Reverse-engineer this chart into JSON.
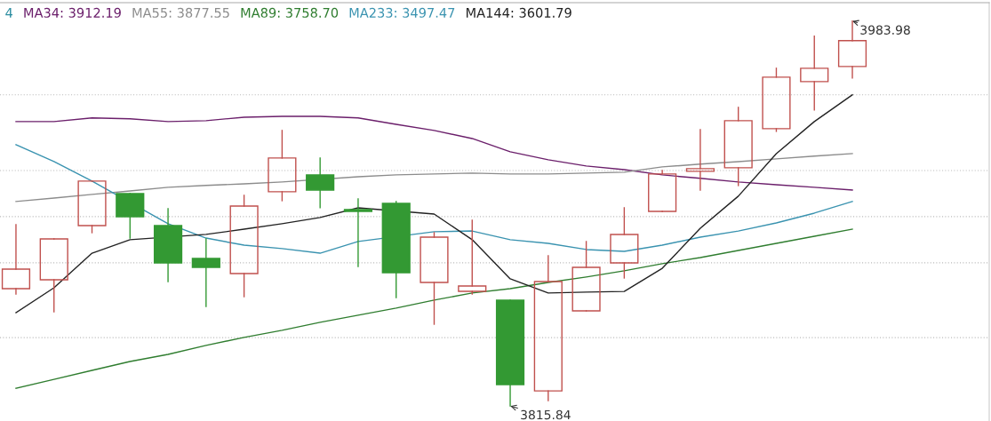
{
  "chart_data": {
    "type": "candlestick",
    "categories": [
      null,
      null,
      null,
      null,
      null,
      null,
      null,
      null,
      null,
      null,
      null,
      null,
      null,
      null,
      null,
      null,
      null,
      null,
      null,
      null,
      null,
      null,
      null
    ],
    "ohlc": [
      [
        3867.1,
        3895.06,
        3864.77,
        3875.64
      ],
      [
        3870.98,
        3888.85,
        3857.0,
        3888.85
      ],
      [
        3894.67,
        3914.09,
        3891.56,
        3914.09
      ],
      [
        3908.65,
        3908.65,
        3889.23,
        3898.55
      ],
      [
        3894.67,
        3902.05,
        3870.2,
        3878.36
      ],
      [
        3880.3,
        3888.85,
        3859.34,
        3876.42
      ],
      [
        3873.7,
        3907.87,
        3863.6,
        3903.21
      ],
      [
        3909.43,
        3936.22,
        3905.54,
        3924.18
      ],
      [
        3916.8,
        3924.18,
        3902.44,
        3910.2
      ],
      [
        3901.66,
        3906.32,
        3876.81,
        3900.88
      ],
      [
        3904.38,
        3905.15,
        3863.22,
        3874.09
      ],
      [
        3869.82,
        3891.56,
        3851.57,
        3889.62
      ],
      [
        3865.94,
        3897.0,
        3864.77,
        3868.27
      ],
      [
        3862.05,
        3862.05,
        3815.84,
        3825.16
      ],
      [
        3822.44,
        3881.47,
        3818.17,
        3870.2
      ],
      [
        3857.39,
        3887.68,
        3857.39,
        3876.42
      ],
      [
        3878.36,
        3902.44,
        3871.76,
        3890.79
      ],
      [
        3900.88,
        3918.75,
        3900.88,
        3917.19
      ],
      [
        3918.36,
        3936.61,
        3910.2,
        3919.52
      ],
      [
        3919.91,
        3946.31,
        3912.15,
        3940.49
      ],
      [
        3936.99,
        3963.4,
        3935.83,
        3959.52
      ],
      [
        3957.58,
        3977.38,
        3945.15,
        3963.4
      ],
      [
        3964.18,
        3983.98,
        3959.13,
        3975.44
      ]
    ],
    "colors": [
      "#c0504d",
      "#c0504d",
      "#c0504d",
      "#339933",
      "#339933",
      "#339933",
      "#c0504d",
      "#c0504d",
      "#339933",
      "#339933",
      "#339933",
      "#c0504d",
      "#c0504d",
      "#339933",
      "#c0504d",
      "#c0504d",
      "#c0504d",
      "#c0504d",
      "#c0504d",
      "#c0504d",
      "#c0504d",
      "#c0504d",
      "#c0504d"
    ],
    "series": [
      {
        "type": "line",
        "name": "MA34: 3912.19",
        "color": "#6b1f6b",
        "values": [
          3940.1,
          3940.1,
          3941.7,
          3941.3,
          3940.1,
          3940.5,
          3942.0,
          3942.4,
          3942.4,
          3941.7,
          3938.9,
          3936.2,
          3932.7,
          3926.9,
          3923.4,
          3920.7,
          3919.1,
          3916.8,
          3915.3,
          3913.7,
          3912.5,
          3911.4,
          3910.2
        ]
      },
      {
        "type": "line",
        "name": "MA55: 3877.55",
        "color": "#8c8c8c",
        "values": [
          3905.2,
          3906.7,
          3908.3,
          3909.8,
          3911.4,
          3912.2,
          3912.9,
          3913.7,
          null,
          3916.0,
          3916.8,
          3917.2,
          3917.6,
          3917.2,
          3917.2,
          3917.6,
          3918.0,
          3920.3,
          3921.5,
          3922.6,
          3923.8,
          3925.0,
          3926.1
        ]
      },
      {
        "type": "line",
        "name": "MA89: 3758.70",
        "color": "#2f7d2f",
        "values": [
          3823.6,
          3827.5,
          3831.4,
          3835.3,
          3838.4,
          3842.3,
          3845.8,
          3848.9,
          3852.4,
          3855.5,
          3858.6,
          3862.1,
          3865.2,
          3867.1,
          3869.8,
          3872.2,
          3874.9,
          3878.0,
          3880.7,
          3883.8,
          3886.9,
          3890.0,
          3893.1
        ]
      },
      {
        "type": "line",
        "name": "MA233: 3497.47",
        "color": "#3a93b0",
        "values": [
          3930.0,
          3922.6,
          3914.1,
          null,
          3895.5,
          3889.2,
          3886.1,
          3884.6,
          3882.6,
          3887.7,
          null,
          3892.0,
          3892.3,
          3888.5,
          3886.9,
          3884.2,
          3883.4,
          3886.1,
          3889.6,
          3892.3,
          3895.8,
          3900.1,
          3905.2
        ]
      },
      {
        "type": "line",
        "name": "MA144: 3601.79",
        "color": "#222222",
        "values": [
          3856.6,
          3867.5,
          3882.6,
          3888.5,
          null,
          3890.8,
          3893.1,
          3895.5,
          3898.2,
          3902.4,
          null,
          3899.7,
          3888.5,
          3871.4,
          3865.2,
          3865.6,
          3865.9,
          3876.0,
          3893.5,
          3907.5,
          3926.1,
          3940.1,
          3951.8
        ]
      }
    ],
    "annotations": [
      "4",
      "3983.98",
      "3815.84"
    ],
    "yticks": [
      {
        "value": 3951.8,
        "label": null
      },
      {
        "value": 3918.7,
        "label": null
      },
      {
        "value": 3898.6,
        "label": null
      },
      {
        "value": 3878.4,
        "label": null
      },
      {
        "value": 3845.7,
        "label": null
      }
    ],
    "grid": "y",
    "legend": "top left"
  }
}
